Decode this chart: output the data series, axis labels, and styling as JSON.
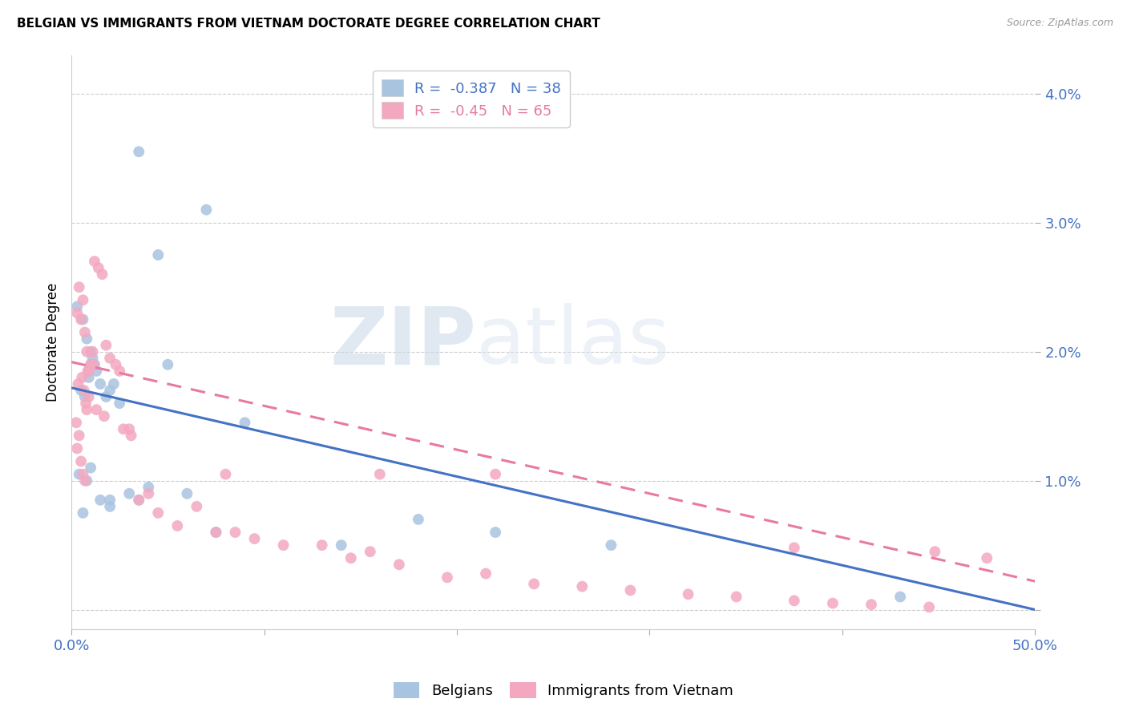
{
  "title": "BELGIAN VS IMMIGRANTS FROM VIETNAM DOCTORATE DEGREE CORRELATION CHART",
  "source": "Source: ZipAtlas.com",
  "ylabel": "Doctorate Degree",
  "xlim": [
    0.0,
    50.0
  ],
  "ylim": [
    -0.15,
    4.3
  ],
  "yticks": [
    0.0,
    1.0,
    2.0,
    3.0,
    4.0
  ],
  "xticks": [
    0.0,
    10.0,
    20.0,
    30.0,
    40.0,
    50.0
  ],
  "belgian_R": -0.387,
  "belgian_N": 38,
  "vietnam_R": -0.45,
  "vietnam_N": 65,
  "belgian_color": "#a8c4e0",
  "vietnam_color": "#f4a8c0",
  "line_blue": "#4472c4",
  "line_pink": "#e87aa0",
  "watermark_zip": "ZIP",
  "watermark_atlas": "atlas",
  "legend_label_blue": "Belgians",
  "legend_label_pink": "Immigrants from Vietnam",
  "blue_line_start_y": 1.72,
  "blue_line_end_y": 0.0,
  "pink_line_start_y": 1.92,
  "pink_line_end_y": 0.22,
  "belgian_x": [
    3.5,
    7.0,
    4.5,
    0.3,
    0.6,
    0.8,
    1.0,
    1.2,
    1.5,
    0.5,
    0.7,
    0.9,
    1.1,
    1.3,
    2.0,
    2.5,
    1.8,
    2.2,
    0.4,
    0.6,
    0.8,
    1.0,
    1.5,
    2.0,
    3.0,
    4.0,
    5.0,
    7.5,
    9.0,
    14.0,
    18.0,
    22.0,
    28.0,
    6.0,
    3.5,
    1.0,
    2.0,
    43.0
  ],
  "belgian_y": [
    3.55,
    3.1,
    2.75,
    2.35,
    2.25,
    2.1,
    2.0,
    1.9,
    1.75,
    1.7,
    1.65,
    1.8,
    1.95,
    1.85,
    1.7,
    1.6,
    1.65,
    1.75,
    1.05,
    0.75,
    1.0,
    1.1,
    0.85,
    0.8,
    0.9,
    0.95,
    1.9,
    0.6,
    1.45,
    0.5,
    0.7,
    0.6,
    0.5,
    0.9,
    0.85,
    1.9,
    0.85,
    0.1
  ],
  "vietnam_x": [
    0.3,
    0.4,
    0.5,
    0.6,
    0.7,
    0.8,
    0.9,
    1.0,
    1.1,
    0.35,
    0.55,
    0.65,
    0.75,
    0.85,
    1.2,
    1.4,
    1.8,
    1.6,
    2.0,
    2.3,
    0.25,
    0.3,
    0.4,
    0.5,
    0.6,
    0.7,
    0.8,
    0.9,
    1.3,
    1.7,
    2.5,
    3.0,
    3.5,
    4.0,
    4.5,
    5.5,
    6.5,
    7.5,
    8.5,
    9.5,
    11.0,
    13.0,
    14.5,
    15.5,
    17.0,
    19.5,
    21.5,
    24.0,
    26.5,
    29.0,
    32.0,
    34.5,
    37.5,
    39.5,
    41.5,
    44.5,
    1.15,
    2.7,
    3.1,
    8.0,
    16.0,
    22.0,
    37.5,
    44.8,
    47.5
  ],
  "vietnam_y": [
    2.3,
    2.5,
    2.25,
    2.4,
    2.15,
    2.0,
    1.85,
    1.9,
    2.0,
    1.75,
    1.8,
    1.7,
    1.6,
    1.85,
    2.7,
    2.65,
    2.05,
    2.6,
    1.95,
    1.9,
    1.45,
    1.25,
    1.35,
    1.15,
    1.05,
    1.0,
    1.55,
    1.65,
    1.55,
    1.5,
    1.85,
    1.4,
    0.85,
    0.9,
    0.75,
    0.65,
    0.8,
    0.6,
    0.6,
    0.55,
    0.5,
    0.5,
    0.4,
    0.45,
    0.35,
    0.25,
    0.28,
    0.2,
    0.18,
    0.15,
    0.12,
    0.1,
    0.07,
    0.05,
    0.04,
    0.02,
    1.9,
    1.4,
    1.35,
    1.05,
    1.05,
    1.05,
    0.48,
    0.45,
    0.4
  ]
}
